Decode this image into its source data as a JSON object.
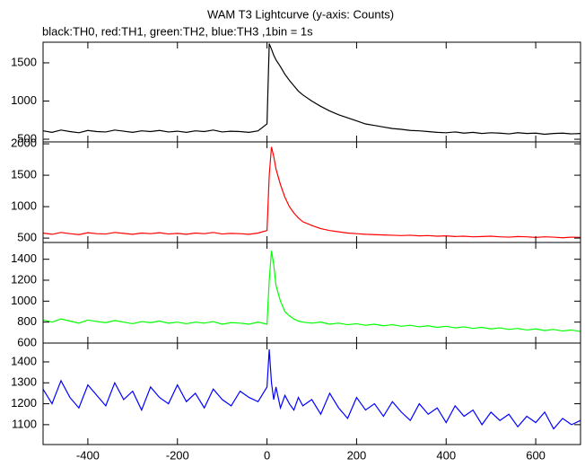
{
  "chart_data": [
    {
      "type": "line",
      "title": "WAM T3 Lightcurve (y-axis: Counts)",
      "subtitle": "black:TH0, red:TH1, green:TH2, blue:TH3 ,1bin = 1s",
      "x": [
        -500,
        -480,
        -460,
        -440,
        -420,
        -400,
        -380,
        -360,
        -340,
        -320,
        -300,
        -280,
        -260,
        -240,
        -220,
        -200,
        -180,
        -160,
        -140,
        -120,
        -100,
        -80,
        -60,
        -40,
        -20,
        0,
        5,
        10,
        15,
        20,
        30,
        40,
        50,
        60,
        70,
        80,
        100,
        120,
        140,
        160,
        180,
        200,
        220,
        240,
        260,
        280,
        300,
        320,
        340,
        360,
        380,
        400,
        420,
        440,
        460,
        480,
        500,
        520,
        540,
        560,
        580,
        600,
        620,
        640,
        660,
        680,
        700
      ],
      "series": [
        {
          "color": "#000000",
          "values": [
            610,
            590,
            620,
            600,
            585,
            615,
            600,
            595,
            620,
            605,
            590,
            610,
            600,
            615,
            595,
            605,
            590,
            610,
            600,
            620,
            595,
            605,
            600,
            590,
            610,
            700,
            1750,
            1680,
            1600,
            1540,
            1450,
            1350,
            1270,
            1200,
            1130,
            1080,
            1000,
            930,
            870,
            820,
            780,
            740,
            700,
            680,
            660,
            640,
            630,
            615,
            610,
            600,
            590,
            585,
            595,
            580,
            590,
            575,
            585,
            580,
            570,
            585,
            575,
            580,
            565,
            575,
            580,
            570,
            575
          ]
        }
      ],
      "xlim": [
        -500,
        700
      ],
      "ylim": [
        465,
        1770
      ],
      "yticks": [
        500,
        1000,
        1500
      ]
    },
    {
      "type": "line",
      "x": [
        -500,
        -480,
        -460,
        -440,
        -420,
        -400,
        -380,
        -360,
        -340,
        -320,
        -300,
        -280,
        -260,
        -240,
        -220,
        -200,
        -180,
        -160,
        -140,
        -120,
        -100,
        -80,
        -60,
        -40,
        -20,
        0,
        5,
        10,
        15,
        20,
        30,
        40,
        50,
        60,
        70,
        80,
        100,
        120,
        140,
        160,
        180,
        200,
        220,
        240,
        260,
        280,
        300,
        320,
        340,
        360,
        380,
        400,
        420,
        440,
        460,
        480,
        500,
        520,
        540,
        560,
        580,
        600,
        620,
        640,
        660,
        680,
        700
      ],
      "series": [
        {
          "color": "#ff0000",
          "values": [
            580,
            560,
            590,
            570,
            555,
            585,
            570,
            565,
            590,
            575,
            560,
            580,
            570,
            585,
            565,
            575,
            560,
            580,
            570,
            590,
            565,
            575,
            570,
            560,
            580,
            620,
            1500,
            1950,
            1800,
            1600,
            1350,
            1150,
            1000,
            900,
            820,
            760,
            700,
            650,
            620,
            600,
            580,
            570,
            560,
            555,
            550,
            545,
            540,
            545,
            535,
            540,
            530,
            535,
            525,
            530,
            520,
            525,
            530,
            520,
            515,
            525,
            520,
            510,
            520,
            515,
            505,
            515,
            510
          ]
        }
      ],
      "xlim": [
        -500,
        700
      ],
      "ylim": [
        430,
        2030
      ],
      "yticks": [
        500,
        1000,
        1500,
        2000
      ]
    },
    {
      "type": "line",
      "x": [
        -500,
        -480,
        -460,
        -440,
        -420,
        -400,
        -380,
        -360,
        -340,
        -320,
        -300,
        -280,
        -260,
        -240,
        -220,
        -200,
        -180,
        -160,
        -140,
        -120,
        -100,
        -80,
        -60,
        -40,
        -20,
        0,
        5,
        10,
        15,
        20,
        30,
        40,
        50,
        60,
        70,
        80,
        100,
        120,
        140,
        160,
        180,
        200,
        220,
        240,
        260,
        280,
        300,
        320,
        340,
        360,
        380,
        400,
        420,
        440,
        460,
        480,
        500,
        520,
        540,
        560,
        580,
        600,
        620,
        640,
        660,
        680,
        700
      ],
      "series": [
        {
          "color": "#00ff00",
          "values": [
            820,
            800,
            830,
            810,
            790,
            820,
            805,
            795,
            815,
            800,
            785,
            805,
            795,
            810,
            790,
            800,
            785,
            800,
            790,
            805,
            780,
            795,
            790,
            780,
            800,
            780,
            1200,
            1480,
            1350,
            1150,
            1000,
            900,
            860,
            830,
            810,
            800,
            790,
            800,
            780,
            790,
            775,
            785,
            770,
            780,
            765,
            775,
            760,
            770,
            755,
            765,
            750,
            760,
            745,
            755,
            740,
            750,
            735,
            745,
            730,
            740,
            725,
            735,
            720,
            730,
            715,
            725,
            710
          ]
        }
      ],
      "xlim": [
        -500,
        700
      ],
      "ylim": [
        600,
        1560
      ],
      "yticks": [
        600,
        800,
        1000,
        1200,
        1400
      ]
    },
    {
      "type": "line",
      "x": [
        -500,
        -480,
        -460,
        -440,
        -420,
        -400,
        -380,
        -360,
        -340,
        -320,
        -300,
        -280,
        -260,
        -240,
        -220,
        -200,
        -180,
        -160,
        -140,
        -120,
        -100,
        -80,
        -60,
        -40,
        -20,
        0,
        5,
        10,
        15,
        20,
        30,
        40,
        50,
        60,
        70,
        80,
        100,
        120,
        140,
        160,
        180,
        200,
        220,
        240,
        260,
        280,
        300,
        320,
        340,
        360,
        380,
        400,
        420,
        440,
        460,
        480,
        500,
        520,
        540,
        560,
        580,
        600,
        620,
        640,
        660,
        680,
        700
      ],
      "series": [
        {
          "color": "#0000ff",
          "values": [
            1270,
            1200,
            1310,
            1230,
            1180,
            1290,
            1240,
            1190,
            1300,
            1220,
            1260,
            1170,
            1280,
            1230,
            1200,
            1290,
            1210,
            1250,
            1180,
            1270,
            1220,
            1190,
            1260,
            1230,
            1210,
            1280,
            1460,
            1300,
            1220,
            1280,
            1180,
            1240,
            1200,
            1170,
            1230,
            1190,
            1220,
            1150,
            1250,
            1180,
            1130,
            1230,
            1170,
            1200,
            1140,
            1210,
            1160,
            1120,
            1200,
            1150,
            1180,
            1110,
            1190,
            1140,
            1170,
            1100,
            1160,
            1120,
            1150,
            1090,
            1140,
            1110,
            1160,
            1080,
            1130,
            1100,
            1120
          ]
        }
      ],
      "xlim": [
        -500,
        700
      ],
      "ylim": [
        1005,
        1490
      ],
      "yticks": [
        1100,
        1200,
        1300,
        1400
      ],
      "xticks": [
        -400,
        -200,
        0,
        200,
        400,
        600
      ]
    }
  ]
}
